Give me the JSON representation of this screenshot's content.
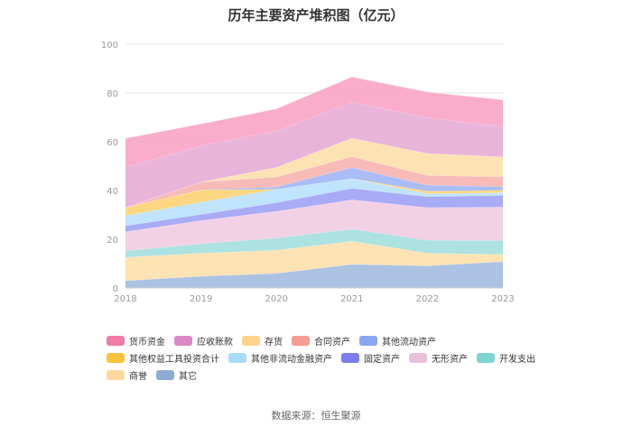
{
  "title": "历年主要资产堆积图（亿元）",
  "source": "数据来源：恒生聚源",
  "chart_data": {
    "type": "area",
    "stacked": true,
    "x": [
      "2018",
      "2019",
      "2020",
      "2021",
      "2022",
      "2023"
    ],
    "ylim": [
      0,
      100
    ],
    "yticks": [
      0,
      20,
      40,
      60,
      80,
      100
    ],
    "grid": true,
    "legend_position": "bottom",
    "series": [
      {
        "name": "其它",
        "color": "#a7bfe0",
        "values": [
          3.0,
          4.8,
          6.0,
          9.7,
          9.1,
          10.8
        ]
      },
      {
        "name": "商誉",
        "color": "#fde2b0",
        "values": [
          9.6,
          9.5,
          9.5,
          9.5,
          5.2,
          3.0
        ]
      },
      {
        "name": "开发支出",
        "color": "#a8e0e0",
        "values": [
          2.6,
          3.9,
          5.0,
          5.0,
          5.3,
          5.7
        ]
      },
      {
        "name": "无形资产",
        "color": "#f2cfe4",
        "values": [
          7.9,
          9.5,
          11.0,
          12.0,
          13.4,
          13.7
        ]
      },
      {
        "name": "固定资产",
        "color": "#a3a6f5",
        "values": [
          2.4,
          2.5,
          3.5,
          4.7,
          4.5,
          4.8
        ]
      },
      {
        "name": "其他非流动金融资产",
        "color": "#bde3fb",
        "values": [
          4.2,
          5.0,
          5.5,
          4.0,
          1.2,
          1.1
        ]
      },
      {
        "name": "其他权益工具投资合计",
        "color": "#fed47a",
        "values": [
          3.3,
          5.0,
          0.0,
          0.0,
          1.0,
          1.0
        ]
      },
      {
        "name": "其他流动资产",
        "color": "#a5b9f8",
        "values": [
          0.0,
          0.0,
          1.0,
          4.5,
          2.5,
          1.5
        ]
      },
      {
        "name": "合同资产",
        "color": "#f8b7b4",
        "values": [
          0.0,
          3.3,
          4.0,
          4.5,
          4.0,
          4.0
        ]
      },
      {
        "name": "存货",
        "color": "#fde2b0",
        "values": [
          0.0,
          0.0,
          4.0,
          7.6,
          9.0,
          8.2
        ]
      },
      {
        "name": "应收账款",
        "color": "#e8b0d8",
        "values": [
          16.5,
          14.8,
          15.0,
          14.7,
          14.6,
          12.4
        ]
      },
      {
        "name": "货币资金",
        "color": "#f9a9c8",
        "values": [
          11.9,
          9.0,
          9.0,
          10.4,
          10.6,
          11.0
        ]
      }
    ]
  },
  "legend": {
    "rows": [
      [
        {
          "label": "货币资金",
          "color": "#f07aa8"
        },
        {
          "label": "应收账款",
          "color": "#d98ac6"
        },
        {
          "label": "存货",
          "color": "#fdd38c"
        },
        {
          "label": "合同资产",
          "color": "#f59c94"
        },
        {
          "label": "其他流动资产",
          "color": "#8aa6f2"
        }
      ],
      [
        {
          "label": "其他权益工具投资合计",
          "color": "#fbc33c"
        },
        {
          "label": "其他非流动金融资产",
          "color": "#a6dcfa"
        },
        {
          "label": "固定资产",
          "color": "#7a7ef0"
        },
        {
          "label": "无形资产",
          "color": "#e9bfdc"
        },
        {
          "label": "开发支出",
          "color": "#7fd4d4"
        }
      ],
      [
        {
          "label": "商誉",
          "color": "#fdd9a0"
        },
        {
          "label": "其它",
          "color": "#8eaad6"
        }
      ]
    ]
  }
}
